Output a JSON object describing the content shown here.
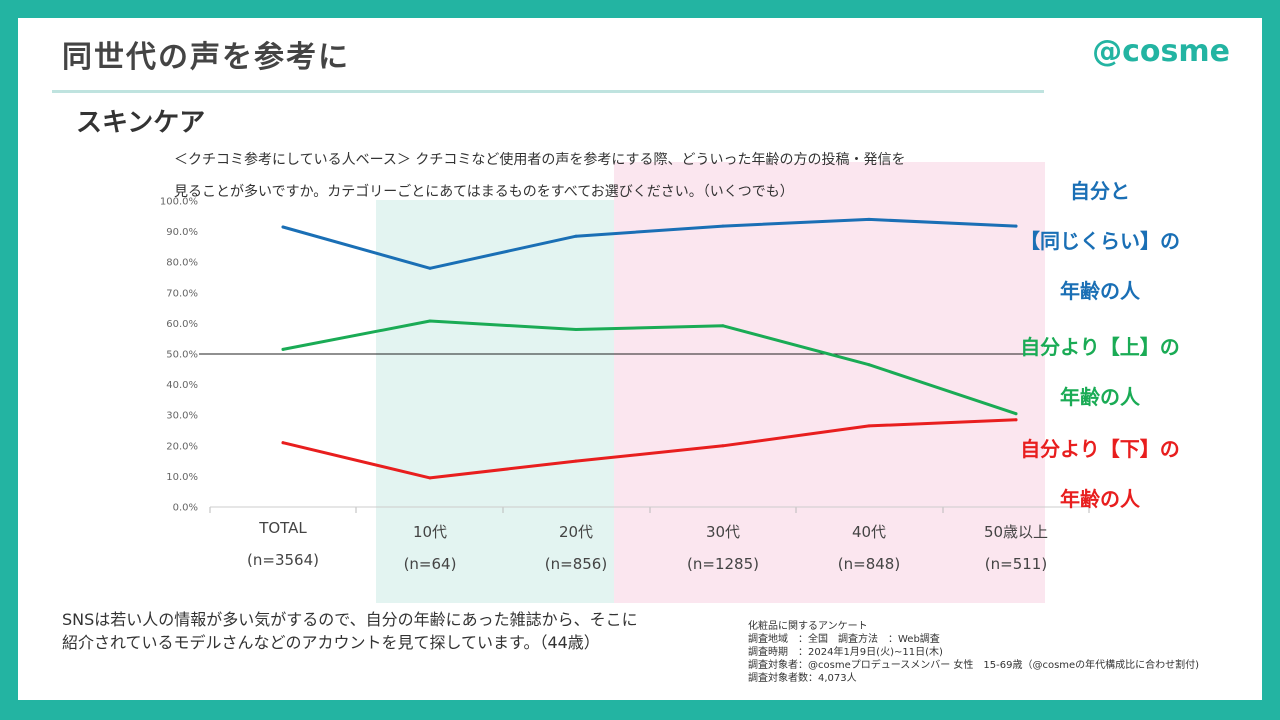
{
  "header": {
    "title": "同世代の声を参考に",
    "logo": "@cosme",
    "section": "スキンケア"
  },
  "question": {
    "line1": "＜クチコミ参考にしている人ベース＞ クチコミなど使用者の声を参考にする際、どういった年齢の方の投稿・発信を",
    "line2": "見ることが多いですか。カテゴリーごとにあてはまるものをすべてお選びください。（いくつでも）"
  },
  "chart_data": {
    "type": "line",
    "categories": [
      "TOTAL",
      "10代",
      "20代",
      "30代",
      "40代",
      "50歳以上"
    ],
    "category_n": [
      "(n=3564)",
      "(n=64)",
      "(n=856)",
      "(n=1285)",
      "(n=848)",
      "(n=511)"
    ],
    "ylim": [
      0,
      100
    ],
    "yticks": [
      "0.0%",
      "10.0%",
      "20.0%",
      "30.0%",
      "40.0%",
      "50.0%",
      "60.0%",
      "70.0%",
      "80.0%",
      "90.0%",
      "100.0%"
    ],
    "reference_line": 50,
    "series": [
      {
        "name": "自分と【同じくらい】の年齢の人",
        "color": "#1a6fb5",
        "values": [
          91.5,
          78,
          88.5,
          91.8,
          94,
          91.8
        ]
      },
      {
        "name": "自分より【上】の年齢の人",
        "color": "#1aab55",
        "values": [
          51.5,
          60.8,
          58,
          59.2,
          46.5,
          30.5
        ]
      },
      {
        "name": "自分より【下】の年齢の人",
        "color": "#e81e1e",
        "values": [
          21,
          9.5,
          15,
          20,
          26.5,
          28.5
        ]
      }
    ],
    "highlight_colors": {
      "youth": "#e3f4f1",
      "adult": "#fbe6ef"
    }
  },
  "legend": {
    "same": [
      "自分と",
      "【同じくらい】の",
      "年齢の人"
    ],
    "older": [
      "自分より【上】の",
      "年齢の人"
    ],
    "younger": [
      "自分より【下】の",
      "年齢の人"
    ]
  },
  "comment": {
    "line1": "SNSは若い人の情報が多い気がするので、自分の年齢にあった雑誌から、そこに",
    "line2": "紹介されているモデルさんなどのアカウントを見て探しています。（44歳）"
  },
  "survey": {
    "title": "化粧品に関するアンケート",
    "area": "調査地域　：全国　調査方法　：Web調査",
    "period": "調査時期　：2024年1月9日(火)~11日(木)",
    "target": "調査対象者：@cosmeプロデュースメンバー 女性　15-69歳（@cosmeの年代構成比に合わせ割付)",
    "count": "調査対象者数：4,073人"
  }
}
